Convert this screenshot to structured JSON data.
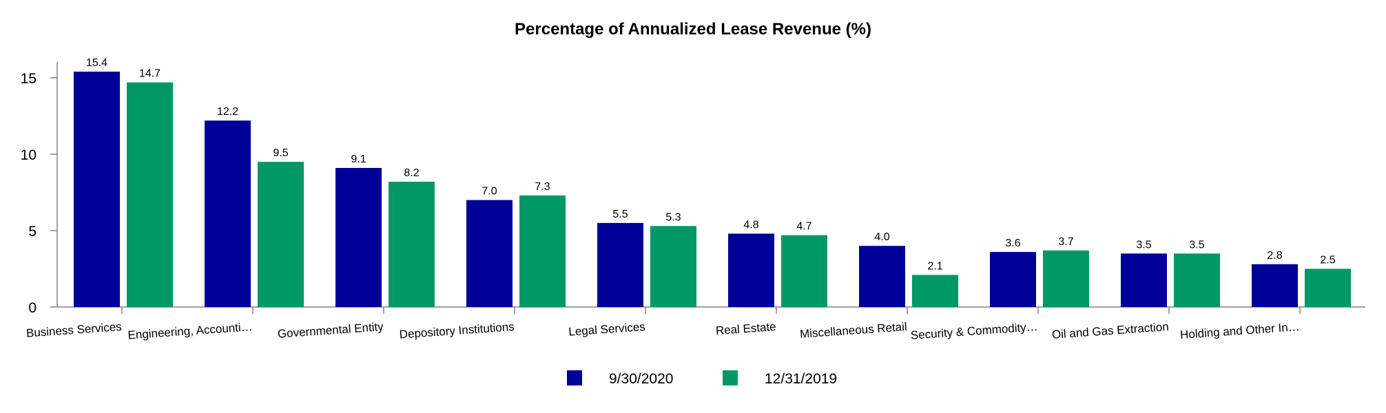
{
  "chart_data": {
    "type": "bar",
    "title": "Percentage of Annualized Lease Revenue (%)",
    "xlabel": "",
    "ylabel": "",
    "ylim": [
      0,
      16
    ],
    "yticks": [
      0,
      5,
      10,
      15
    ],
    "grid": false,
    "legend_position": "bottom",
    "categories": [
      "Business Services",
      "Engineering, Accounti…",
      "Governmental Entity",
      "Depository Institutions",
      "Legal Services",
      "Real Estate",
      "Miscellaneous Retail",
      "Security & Commodity…",
      "Oil and Gas Extraction",
      "Holding and Other In…"
    ],
    "series": [
      {
        "name": "9/30/2020",
        "color": "#000099",
        "values": [
          15.4,
          12.2,
          9.1,
          7.0,
          5.5,
          4.8,
          4.0,
          3.6,
          3.5,
          2.8
        ],
        "labels": [
          "15.4",
          "12.2",
          "9.1",
          "7.0",
          "5.5",
          "4.8",
          "4.0",
          "3.6",
          "3.5",
          "2.8"
        ]
      },
      {
        "name": "12/31/2019",
        "color": "#009966",
        "values": [
          14.7,
          9.5,
          8.2,
          7.3,
          5.3,
          4.7,
          2.1,
          3.7,
          3.5,
          2.5
        ],
        "labels": [
          "14.7",
          "9.5",
          "8.2",
          "7.3",
          "5.3",
          "4.7",
          "2.1",
          "3.7",
          "3.5",
          "2.5"
        ]
      }
    ],
    "axis_color": "#A0A0A0"
  }
}
